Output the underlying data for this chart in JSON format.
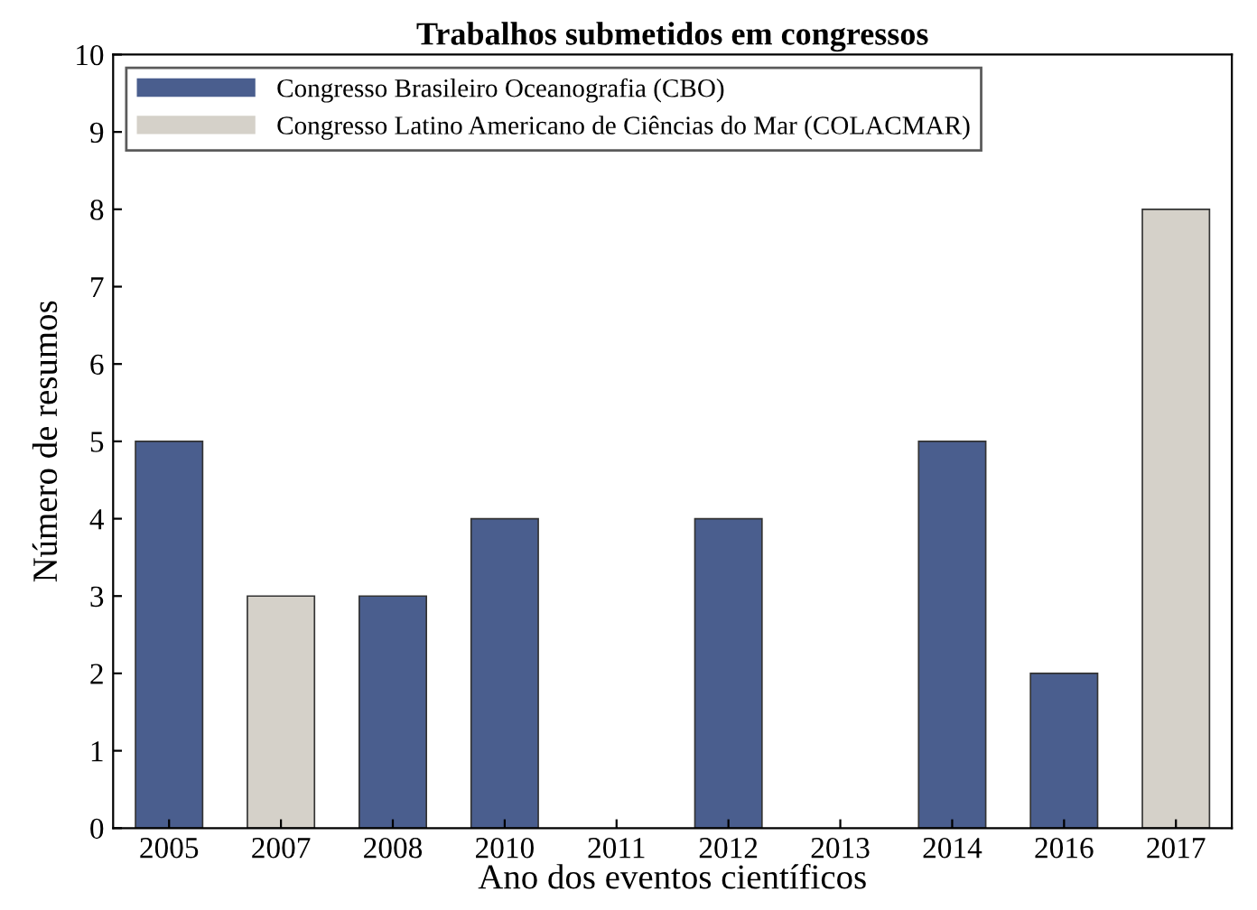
{
  "chart_data": {
    "type": "bar",
    "title": "Trabalhos submetidos em congressos",
    "xlabel": "Ano dos eventos científicos",
    "ylabel": "Número de resumos",
    "categories": [
      "2005",
      "2007",
      "2008",
      "2010",
      "2011",
      "2012",
      "2013",
      "2014",
      "2016",
      "2017"
    ],
    "series": [
      {
        "name": "Congresso Brasileiro Oceanografia (CBO)",
        "color": "#4a5e8e",
        "values": [
          5,
          null,
          3,
          4,
          null,
          4,
          null,
          5,
          2,
          null
        ]
      },
      {
        "name": "Congresso Latino Americano de Ciências do Mar (COLACMAR)",
        "color": "#d5d1c9",
        "values": [
          null,
          3,
          null,
          null,
          null,
          null,
          null,
          null,
          null,
          8
        ]
      }
    ],
    "ylim": [
      0,
      10
    ],
    "yticks": [
      0,
      1,
      2,
      3,
      4,
      5,
      6,
      7,
      8,
      9,
      10
    ],
    "grid": false,
    "legend": "top left"
  }
}
